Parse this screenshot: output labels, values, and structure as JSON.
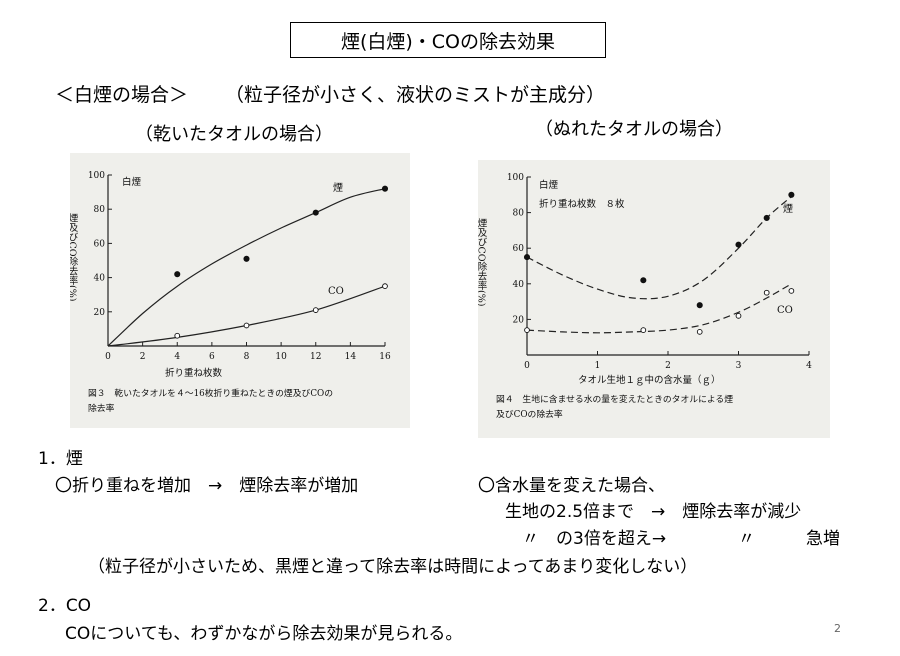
{
  "title": "煙(白煙)・COの除去効果",
  "heading": "＜白煙の場合＞",
  "heading_note": "（粒子径が小さく、液状のミストが主成分）",
  "sub_left": "（乾いたタオルの場合）",
  "sub_right": "（ぬれたタオルの場合）",
  "section1": {
    "title": "1．煙",
    "left": "〇折り重ねを増加　→　煙除去率が増加",
    "right_1": "〇含水量を変えた場合、",
    "right_2": "生地の2.5倍まで　→　煙除去率が減少",
    "right_3_a": "〃　の3倍を超え→",
    "right_3_b": "〃",
    "right_3_c": "急増",
    "note": "（粒子径が小さいため、黒煙と違って除去率は時間によってあまり変化しない）"
  },
  "section2": {
    "title": "2．CO",
    "text": "COについても、わずかながら除去効果が見られる。"
  },
  "page_number": "2",
  "chart_data": [
    {
      "type": "scatter",
      "title": "白煙",
      "caption_line1": "図３　乾いたタオルを４～16枚折り重ねたときの煙及びCOの",
      "caption_line2": "除去率",
      "xlabel": "折り重ね枚数",
      "ylabel": "煙及びCO除去率(%)",
      "xlim": [
        0,
        16
      ],
      "ylim": [
        0,
        100
      ],
      "xticks": [
        0,
        2,
        4,
        6,
        8,
        10,
        12,
        14,
        16
      ],
      "yticks": [
        20,
        40,
        60,
        80,
        100
      ],
      "series": [
        {
          "name": "煙",
          "marker": "filled",
          "x": [
            4,
            8,
            12,
            16
          ],
          "y": [
            42,
            51,
            78,
            92
          ],
          "curve_x": [
            0,
            2,
            4,
            6,
            8,
            10,
            12,
            14,
            16
          ],
          "curve_y": [
            0,
            19,
            35,
            48,
            59,
            69,
            78,
            87,
            92
          ]
        },
        {
          "name": "CO",
          "marker": "open",
          "x": [
            4,
            8,
            12,
            16
          ],
          "y": [
            6,
            12,
            21,
            35
          ],
          "curve_x": [
            0,
            4,
            8,
            12,
            16
          ],
          "curve_y": [
            0,
            5,
            12,
            21,
            35
          ]
        }
      ]
    },
    {
      "type": "scatter",
      "title": "白煙",
      "subtitle": "折り重ね枚数　８枚",
      "caption_line1": "図４　生地に含ませる水の量を変えたときのタオルによる煙",
      "caption_line2": "及びCOの除去率",
      "xlabel": "タオル生地１ｇ中の含水量（ｇ）",
      "ylabel": "煙及びCO除去率(%)",
      "xlim": [
        0,
        4
      ],
      "ylim": [
        0,
        100
      ],
      "xticks": [
        0,
        1,
        2,
        3,
        4
      ],
      "yticks": [
        20,
        40,
        60,
        80,
        100
      ],
      "series": [
        {
          "name": "煙",
          "marker": "filled",
          "x": [
            0,
            1.65,
            2.45,
            3.0,
            3.4,
            3.75
          ],
          "y": [
            55,
            42,
            28,
            62,
            77,
            90
          ],
          "curve_x": [
            0,
            0.5,
            1.0,
            1.5,
            2.0,
            2.5,
            3.0,
            3.4,
            3.75
          ],
          "curve_y": [
            55,
            45,
            37,
            32,
            33,
            42,
            60,
            77,
            89
          ]
        },
        {
          "name": "CO",
          "marker": "open",
          "x": [
            0,
            1.65,
            2.45,
            3.0,
            3.4,
            3.75
          ],
          "y": [
            14,
            14,
            13,
            22,
            35,
            36
          ],
          "curve_x": [
            0,
            0.5,
            1.0,
            1.5,
            2.0,
            2.5,
            3.0,
            3.4,
            3.75
          ],
          "curve_y": [
            14,
            13,
            12.5,
            13,
            14,
            17,
            24,
            32,
            40
          ]
        }
      ]
    }
  ]
}
